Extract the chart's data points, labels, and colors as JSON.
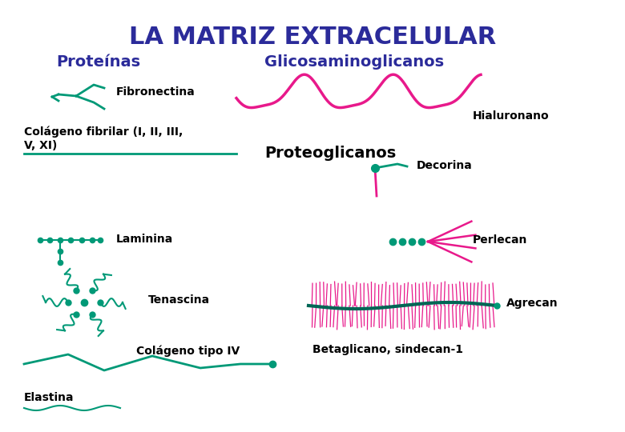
{
  "title": "LA MATRIZ EXTRACELULAR",
  "title_color": "#2B2B9A",
  "title_fontsize": 22,
  "subtitle_proteinas": "Proteínas",
  "subtitle_glicosaminoglicanos": "Glicosaminoglicanos",
  "subtitle_color": "#2B2B9A",
  "subtitle_fontsize": 14,
  "label_color_dark": "#000000",
  "teal": "#009977",
  "pink": "#E8198B",
  "dark_teal": "#006655",
  "bg_color": "#FFFFFF"
}
